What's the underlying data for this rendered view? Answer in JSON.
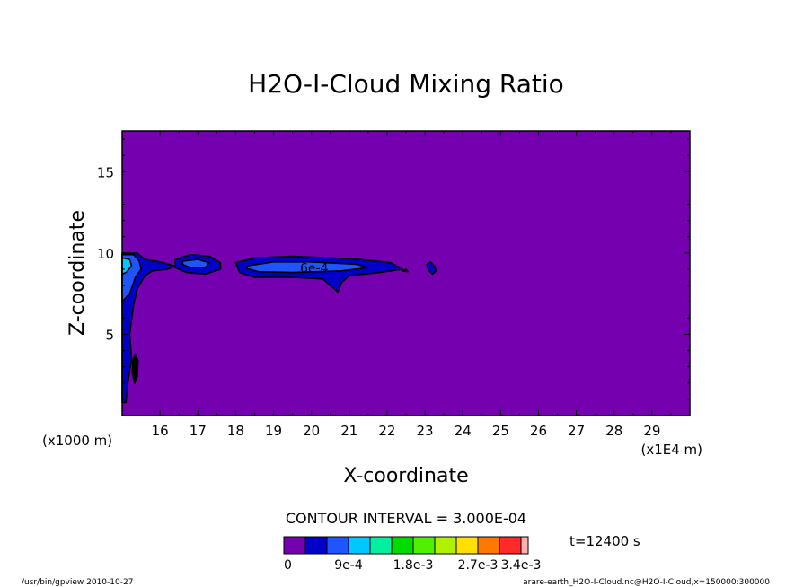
{
  "chart_data": {
    "type": "heatmap",
    "title": "H2O-I-Cloud Mixing Ratio",
    "xlabel": "X-coordinate",
    "ylabel": "Z-coordinate",
    "x_unit_left": "(x1000 m)",
    "x_unit_right": "(x1E4 m)",
    "xlim": [
      15,
      30
    ],
    "ylim": [
      0,
      17.5
    ],
    "x_ticks": [
      "16",
      "17",
      "18",
      "19",
      "20",
      "21",
      "22",
      "23",
      "24",
      "25",
      "26",
      "27",
      "28",
      "29"
    ],
    "y_ticks": [
      "5",
      "10",
      "15"
    ],
    "y_tick_values": [
      5,
      10,
      15
    ],
    "contour_interval": "CONTOUR INTERVAL = 3.000E-04",
    "time_label": "t=12400 s",
    "contour_label": "6e-4",
    "colorbar": {
      "colors": [
        "#7400b0",
        "#0000c8",
        "#1e55ff",
        "#00c8ff",
        "#00f0a0",
        "#00dc00",
        "#50f000",
        "#b0f000",
        "#ffe000",
        "#ff7800",
        "#ff2a2a",
        "#ffb0b0"
      ],
      "labels": [
        "0",
        "9e-4",
        "1.8e-3",
        "2.7e-3",
        "3.4e-3"
      ],
      "label_positions": [
        0,
        3,
        6,
        9,
        11
      ]
    },
    "background_color": "#7400b0",
    "cloud_regions": [
      {
        "level": 1,
        "points": [
          [
            15.0,
            10.0
          ],
          [
            15.4,
            10.0
          ],
          [
            15.6,
            9.6
          ],
          [
            15.9,
            9.5
          ],
          [
            16.4,
            9.2
          ],
          [
            16.2,
            9.0
          ],
          [
            15.8,
            8.9
          ],
          [
            15.6,
            8.6
          ],
          [
            15.4,
            7.8
          ],
          [
            15.3,
            6.8
          ],
          [
            15.2,
            5.0
          ],
          [
            15.25,
            3.5
          ],
          [
            15.15,
            2.0
          ],
          [
            15.1,
            0.8
          ],
          [
            15.0,
            0.8
          ]
        ]
      },
      {
        "level": 2,
        "points": [
          [
            15.0,
            9.9
          ],
          [
            15.3,
            9.9
          ],
          [
            15.45,
            9.5
          ],
          [
            15.5,
            9.0
          ],
          [
            15.35,
            8.5
          ],
          [
            15.2,
            7.5
          ],
          [
            15.0,
            7.0
          ]
        ]
      },
      {
        "level": 3,
        "points": [
          [
            15.0,
            9.7
          ],
          [
            15.2,
            9.6
          ],
          [
            15.25,
            9.2
          ],
          [
            15.1,
            8.8
          ],
          [
            15.0,
            8.7
          ]
        ]
      },
      {
        "level": 1,
        "points": [
          [
            16.4,
            9.6
          ],
          [
            16.8,
            9.9
          ],
          [
            17.3,
            9.8
          ],
          [
            17.6,
            9.4
          ],
          [
            17.6,
            9.0
          ],
          [
            17.2,
            8.7
          ],
          [
            16.7,
            8.8
          ],
          [
            16.4,
            9.1
          ]
        ]
      },
      {
        "level": 2,
        "points": [
          [
            16.6,
            9.5
          ],
          [
            17.0,
            9.6
          ],
          [
            17.3,
            9.4
          ],
          [
            17.2,
            9.1
          ],
          [
            16.8,
            9.1
          ],
          [
            16.6,
            9.3
          ]
        ]
      },
      {
        "level": 1,
        "points": [
          [
            18.0,
            9.4
          ],
          [
            18.5,
            9.7
          ],
          [
            19.5,
            9.8
          ],
          [
            20.5,
            9.7
          ],
          [
            21.3,
            9.6
          ],
          [
            22.1,
            9.4
          ],
          [
            22.4,
            9.0
          ],
          [
            21.8,
            8.8
          ],
          [
            21.0,
            8.6
          ],
          [
            20.8,
            8.2
          ],
          [
            20.7,
            7.6
          ],
          [
            20.5,
            8.0
          ],
          [
            20.3,
            8.4
          ],
          [
            19.5,
            8.5
          ],
          [
            18.5,
            8.5
          ],
          [
            18.1,
            8.8
          ]
        ]
      },
      {
        "level": 2,
        "points": [
          [
            18.3,
            9.2
          ],
          [
            19.0,
            9.45
          ],
          [
            20.0,
            9.45
          ],
          [
            21.2,
            9.3
          ],
          [
            21.5,
            9.1
          ],
          [
            20.8,
            8.9
          ],
          [
            19.5,
            8.8
          ],
          [
            18.6,
            8.85
          ],
          [
            18.3,
            9.05
          ]
        ]
      },
      {
        "level": 1,
        "points": [
          [
            23.05,
            9.3
          ],
          [
            23.15,
            9.45
          ],
          [
            23.25,
            9.2
          ],
          [
            23.3,
            8.9
          ],
          [
            23.2,
            8.7
          ],
          [
            23.1,
            8.9
          ]
        ]
      },
      {
        "level": 1,
        "points": [
          [
            22.4,
            8.9
          ],
          [
            22.5,
            9.0
          ],
          [
            22.55,
            8.85
          ]
        ]
      },
      {
        "level": 0,
        "points": [
          [
            15.35,
            3.8
          ],
          [
            15.42,
            3.4
          ],
          [
            15.4,
            2.4
          ],
          [
            15.33,
            2.0
          ],
          [
            15.27,
            2.6
          ],
          [
            15.28,
            3.4
          ]
        ]
      }
    ]
  },
  "footer": {
    "left": "/usr/bin/gpview  2010-10-27",
    "right": "arare-earth_H2O-I-Cloud.nc@H2O-I-Cloud,x=150000:300000"
  }
}
